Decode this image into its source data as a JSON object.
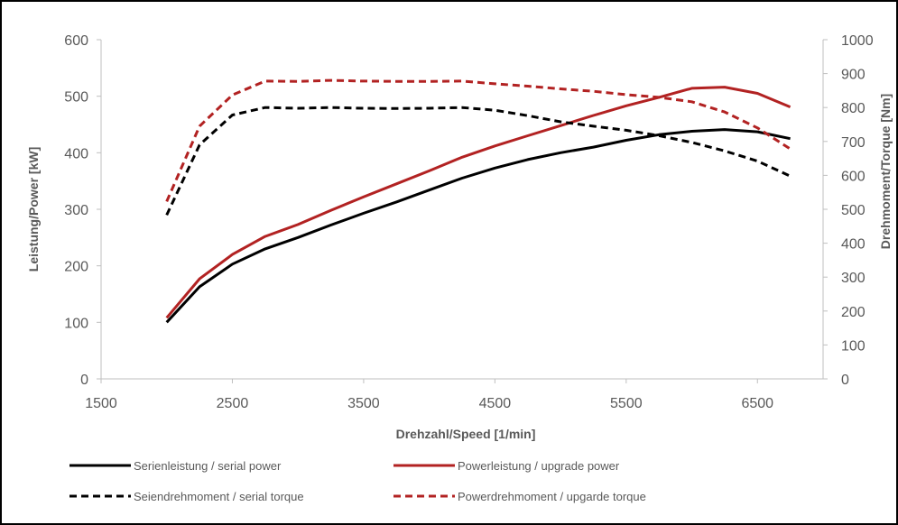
{
  "chart_data": {
    "type": "line",
    "xlabel": "Drehzahl/Speed [1/min]",
    "ylabel": "Leistung/Power [kW]",
    "y2label": "Drehmoment/Torque [Nm]",
    "xlim": [
      1500,
      7000
    ],
    "ylim": [
      0,
      600
    ],
    "y2lim": [
      0,
      1000
    ],
    "xticks": [
      "1500",
      "2500",
      "3500",
      "4500",
      "5500",
      "6500"
    ],
    "xtick_values": [
      1500,
      2500,
      3500,
      4500,
      5500,
      6500
    ],
    "yticks": [
      "0",
      "100",
      "200",
      "300",
      "400",
      "500",
      "600"
    ],
    "ytick_values": [
      0,
      100,
      200,
      300,
      400,
      500,
      600
    ],
    "y2ticks": [
      "0",
      "100",
      "200",
      "300",
      "400",
      "500",
      "600",
      "700",
      "800",
      "900",
      "1000"
    ],
    "y2tick_values": [
      0,
      100,
      200,
      300,
      400,
      500,
      600,
      700,
      800,
      900,
      1000
    ],
    "x": [
      2000,
      2250,
      2500,
      2750,
      3000,
      3250,
      3500,
      3750,
      4000,
      4250,
      4500,
      4750,
      5000,
      5250,
      5500,
      5750,
      6000,
      6250,
      6500,
      6750
    ],
    "grid": false,
    "legend_position": "bottom",
    "series": [
      {
        "name": "Serienleistung / serial power",
        "axis": "left",
        "color": "#000000",
        "dashed": false,
        "values": [
          100,
          163,
          203,
          230,
          250,
          272,
          293,
          313,
          334,
          355,
          373,
          388,
          400,
          410,
          422,
          432,
          438,
          441,
          437,
          425
        ]
      },
      {
        "name": "Powerleistung / upgrade power",
        "axis": "left",
        "color": "#b22222",
        "dashed": false,
        "values": [
          108,
          177,
          220,
          252,
          273,
          298,
          322,
          345,
          368,
          392,
          412,
          430,
          448,
          466,
          483,
          498,
          514,
          516,
          505,
          481
        ]
      },
      {
        "name": "Seiendrehmoment / serial torque",
        "axis": "right",
        "color": "#000000",
        "dashed": true,
        "values": [
          483,
          690,
          778,
          800,
          798,
          800,
          798,
          797,
          798,
          800,
          792,
          776,
          758,
          745,
          733,
          717,
          697,
          672,
          642,
          598
        ]
      },
      {
        "name": "Powerdrehmoment / upgarde torque",
        "axis": "right",
        "color": "#b22222",
        "dashed": true,
        "values": [
          523,
          745,
          837,
          878,
          877,
          880,
          878,
          877,
          877,
          878,
          870,
          863,
          855,
          848,
          838,
          830,
          817,
          787,
          740,
          678
        ]
      }
    ]
  }
}
